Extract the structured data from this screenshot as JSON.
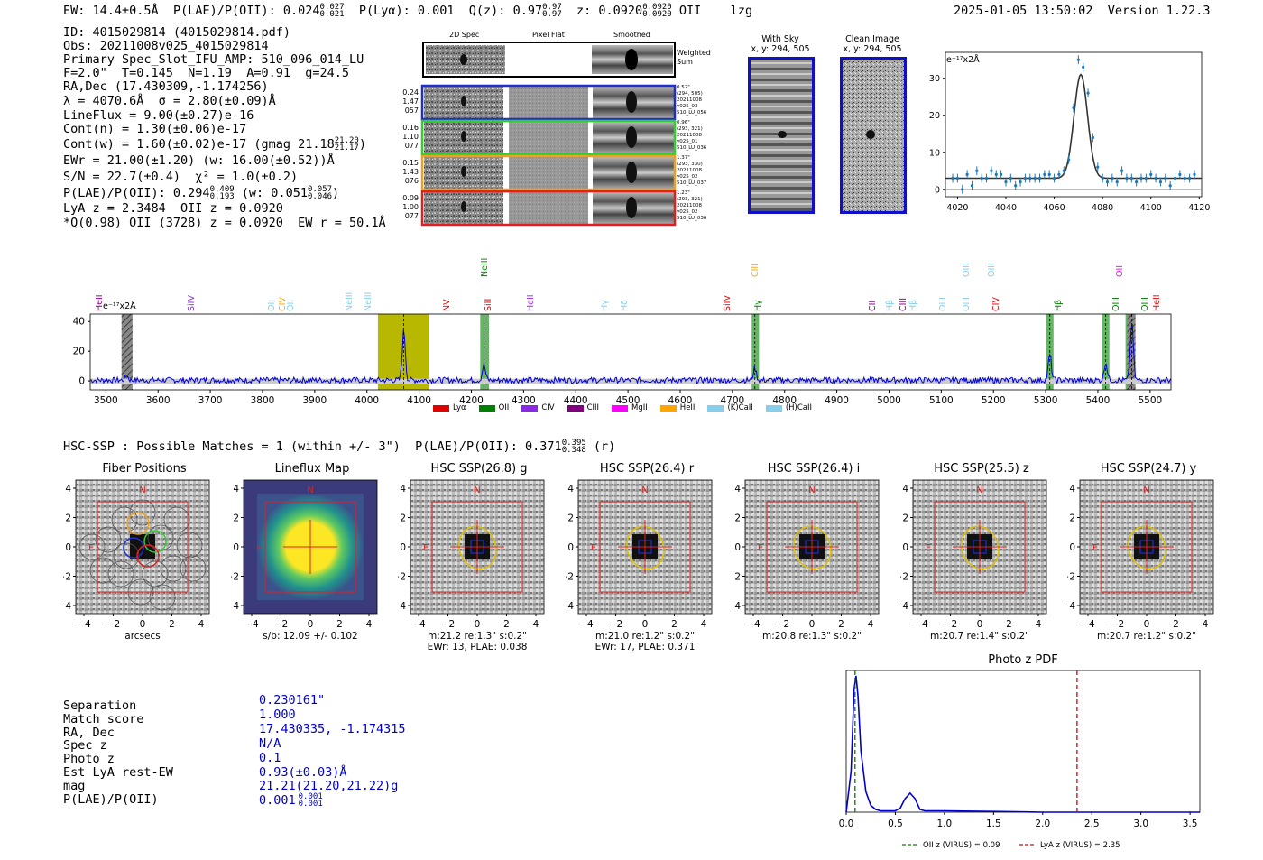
{
  "header": {
    "ew": "EW: 14.4±0.5Å",
    "plae": "P(LAE)/P(OII): 0.024",
    "plae_hi": "0.027",
    "plae_lo": "0.021",
    "plya": "P(Lyα): 0.001",
    "qz": "Q(z): 0.97",
    "qz_hi": "0.97",
    "qz_lo": "0.97",
    "z": "z: 0.0920",
    "z_hi": "0.0920",
    "z_lo": "0.0920",
    "z_line": "OII",
    "lzg": "lzg",
    "datetime": "2025-01-05 13:50:02",
    "version": "Version 1.22.3"
  },
  "info": {
    "l1": "ID: 4015029814 (4015029814.pdf)",
    "l2": "Obs: 20211008v025_4015029814",
    "l3": "Primary Spec_Slot_IFU_AMP: 510_096_014_LU",
    "l4": "F=2.0\"  T=0.145  N=1.19  A=0.91  g=24.5",
    "l5": "RA,Dec (17.430309,-1.174256)",
    "l6": "λ = 4070.6Å  σ = 2.80(±0.09)Å",
    "l7": "LineFlux = 9.00(±0.27)e-16",
    "l8": "Cont(n) = 1.30(±0.06)e-17",
    "l9": "Cont(w) = 1.60(±0.02)e-17 (gmag 21.18",
    "l9_hi": "21.20",
    "l9_lo": "21.17",
    "l9_end": ")",
    "l10": "EWr = 21.00(±1.20) (w: 16.00(±0.52))Å",
    "l11": "S/N = 22.7(±0.4)  χ² = 1.0(±0.2)",
    "l12a": "P(LAE)/P(OII): 0.294",
    "l12a_hi": "0.409",
    "l12a_lo": "0.193",
    "l12b": "(w: 0.051",
    "l12b_hi": "0.057",
    "l12b_lo": "0.046",
    "l12b_end": ")",
    "l13": "LyA z = 2.3484  OII z = 0.0920",
    "l14": "*Q(0.98) OII (3728) z = 0.0920  EW r = 50.1Å"
  },
  "cutouts": {
    "col1": "2D Spec",
    "col2": "Pixel Flat",
    "col3": "Smoothed",
    "weighted": "Weighted Sum",
    "fibers": [
      {
        "left": [
          "0.24",
          "1.47",
          "057"
        ],
        "right": [
          "0.52\"",
          "(294, 505)",
          "20211008",
          "v025_03",
          "510_LU_056"
        ],
        "color": "#1f2fcc"
      },
      {
        "left": [
          "0.16",
          "1.10",
          "077"
        ],
        "right": [
          "0.96\"",
          "(293, 321)",
          "20211008",
          "v025_01",
          "510_LU_036"
        ],
        "color": "#33cc33"
      },
      {
        "left": [
          "0.15",
          "1.43",
          "076"
        ],
        "right": [
          "1.37\"",
          "(293, 330)",
          "20211008",
          "v025_02",
          "510_LU_037"
        ],
        "color": "#f0a020"
      },
      {
        "left": [
          "0.09",
          "1.00",
          "077"
        ],
        "right": [
          "1.23\"",
          "(293, 321)",
          "20211008",
          "v025_02",
          "510_LU_036"
        ],
        "color": "#e02020"
      }
    ],
    "withsky": "With Sky",
    "withsky_xy": "x, y: 294, 505",
    "clean": "Clean Image",
    "clean_xy": "x, y: 294, 505"
  },
  "zoom_chart": {
    "label": "e⁻¹⁷x2Å",
    "yticks": [
      "0",
      "10",
      "20",
      "30"
    ],
    "xticks": [
      "4020",
      "4040",
      "4060",
      "4080",
      "4100",
      "4120"
    ]
  },
  "spectrum": {
    "ylabel": "e⁻¹⁷x2Å",
    "yticks": [
      "0",
      "20",
      "40"
    ],
    "xticks": [
      "3500",
      "3600",
      "3700",
      "3800",
      "3900",
      "4000",
      "4100",
      "4200",
      "4300",
      "4400",
      "4500",
      "4600",
      "4700",
      "4800",
      "4900",
      "5000",
      "5100",
      "5200",
      "5300",
      "5400",
      "5500"
    ],
    "legend": [
      {
        "label": "Lyα",
        "color": "#e00000"
      },
      {
        "label": "OII",
        "color": "#008000"
      },
      {
        "label": "CIV",
        "color": "#8a2be2"
      },
      {
        "label": "CIII",
        "color": "#800080"
      },
      {
        "label": "MgII",
        "color": "#ff00ff"
      },
      {
        "label": "HeII",
        "color": "#ffa500"
      },
      {
        "label": "(K)CaII",
        "color": "#87ceeb"
      },
      {
        "label": "(H)CaII",
        "color": "#87ceeb"
      }
    ],
    "lines": [
      {
        "t": "HeII",
        "x": 110,
        "c": "#800080",
        "r": 1
      },
      {
        "t": "SiIV",
        "x": 212,
        "c": "#8a2be2",
        "r": 1
      },
      {
        "t": "OII",
        "x": 301,
        "c": "#87ceeb",
        "r": 1
      },
      {
        "t": "CIV",
        "x": 313,
        "c": "#ffa500",
        "r": 1
      },
      {
        "t": "OII",
        "x": 322,
        "c": "#87ceeb",
        "r": 1
      },
      {
        "t": "NeIII",
        "x": 387,
        "c": "#87ceeb",
        "r": 1
      },
      {
        "t": "NeIII",
        "x": 408,
        "c": "#87ceeb",
        "r": 1
      },
      {
        "t": "NV",
        "x": 495,
        "c": "#e00000",
        "r": 1
      },
      {
        "t": "NeIII",
        "x": 537,
        "c": "#008000",
        "r": 0
      },
      {
        "t": "SiII",
        "x": 541,
        "c": "#e00000",
        "r": 1
      },
      {
        "t": "HeII",
        "x": 588,
        "c": "#8a2be2",
        "r": 1
      },
      {
        "t": "Hγ",
        "x": 670,
        "c": "#87ceeb",
        "r": 1
      },
      {
        "t": "Hδ",
        "x": 692,
        "c": "#87ceeb",
        "r": 1
      },
      {
        "t": "SiIV",
        "x": 806,
        "c": "#e00000",
        "r": 1
      },
      {
        "t": "CIII",
        "x": 837,
        "c": "#ffa500",
        "r": 0
      },
      {
        "t": "Hγ",
        "x": 840,
        "c": "#008000",
        "r": 1
      },
      {
        "t": "CII",
        "x": 967,
        "c": "#800080",
        "r": 1
      },
      {
        "t": "Hβ",
        "x": 986,
        "c": "#87ceeb",
        "r": 1
      },
      {
        "t": "CIII",
        "x": 1001,
        "c": "#800080",
        "r": 1
      },
      {
        "t": "Hβ",
        "x": 1012,
        "c": "#87ceeb",
        "r": 1
      },
      {
        "t": "OIII",
        "x": 1045,
        "c": "#87ceeb",
        "r": 1
      },
      {
        "t": "OIII",
        "x": 1071,
        "c": "#87ceeb",
        "r": 0
      },
      {
        "t": "OIII",
        "x": 1071,
        "c": "#87ceeb",
        "r": 1
      },
      {
        "t": "OIII",
        "x": 1099,
        "c": "#87ceeb",
        "r": 0
      },
      {
        "t": "CIV",
        "x": 1104,
        "c": "#e00000",
        "r": 1
      },
      {
        "t": "Hβ",
        "x": 1173,
        "c": "#008000",
        "r": 1
      },
      {
        "t": "OIII",
        "x": 1237,
        "c": "#008000",
        "r": 1
      },
      {
        "t": "OII",
        "x": 1241,
        "c": "#ff00ff",
        "r": 0
      },
      {
        "t": "OIII",
        "x": 1269,
        "c": "#008000",
        "r": 1
      },
      {
        "t": "HeII",
        "x": 1282,
        "c": "#e00000",
        "r": 1
      }
    ]
  },
  "hsc": {
    "title": "HSC-SSP : Possible Matches = 1 (within +/- 3\")  P(LAE)/P(OII): 0.371",
    "hi": "0.395",
    "lo": "0.348",
    "end": "(r)",
    "panels": [
      {
        "title": "Fiber Positions",
        "cap1": "arcsecs",
        "cap2": ""
      },
      {
        "title": "Lineflux Map",
        "cap1": "s/b: 12.09 +/- 0.102",
        "cap2": ""
      },
      {
        "title": "HSC SSP(26.8) g",
        "cap1": "m:21.2  re:1.3\"  s:0.2\"",
        "cap2": "EWr: 13, PLAE: 0.038"
      },
      {
        "title": "HSC SSP(26.4) r",
        "cap1": "m:21.0  re:1.2\"  s:0.2\"",
        "cap2": "EWr: 17, PLAE: 0.371"
      },
      {
        "title": "HSC SSP(26.4) i",
        "cap1": "m:20.8  re:1.3\"  s:0.2\"",
        "cap2": ""
      },
      {
        "title": "HSC SSP(25.5) z",
        "cap1": "m:20.7  re:1.4\"  s:0.2\"",
        "cap2": ""
      },
      {
        "title": "HSC SSP(24.7) y",
        "cap1": "m:20.7  re:1.2\"  s:0.2\"",
        "cap2": ""
      }
    ],
    "yticks": [
      "4",
      "2",
      "0",
      "−2",
      "−4"
    ],
    "xticks": [
      "−4",
      "−2",
      "0",
      "2",
      "4"
    ],
    "n": "N",
    "e": "E"
  },
  "match": {
    "labels": [
      "Separation",
      "Match score",
      "RA, Dec",
      "Spec z",
      "Photo z",
      "Est LyA rest-EW",
      "mag",
      "P(LAE)/P(OII)"
    ],
    "values": [
      "0.230161\"",
      "1.000",
      "17.430335, -1.174315",
      "N/A",
      "0.1",
      "0.93(±0.03)Å",
      "21.21(21.20,21.22)g",
      "0.001"
    ],
    "plae_hi": "0.001",
    "plae_lo": "0.001"
  },
  "chart_data": [
    {
      "type": "line",
      "title": "Photo z PDF",
      "xlabel": "",
      "ylabel": "",
      "xlim": [
        0,
        3.6
      ],
      "xticks": [
        "0.0",
        "0.5",
        "1.0",
        "1.5",
        "2.0",
        "2.5",
        "3.0",
        "3.5"
      ],
      "x": [
        0,
        0.05,
        0.08,
        0.1,
        0.12,
        0.15,
        0.2,
        0.25,
        0.3,
        0.35,
        0.4,
        0.5,
        0.55,
        0.6,
        0.65,
        0.7,
        0.75,
        0.8,
        1.0,
        1.5,
        2.0,
        2.5,
        3.0,
        3.6
      ],
      "values": [
        0,
        0.3,
        0.9,
        1.0,
        0.85,
        0.45,
        0.15,
        0.05,
        0.02,
        0.01,
        0.01,
        0.01,
        0.03,
        0.1,
        0.14,
        0.1,
        0.02,
        0.01,
        0.01,
        0.005,
        0.0,
        0.0,
        0.0,
        0.0
      ],
      "markers": [
        {
          "name": "OII z (VIRUS) = 0.09",
          "x": 0.09,
          "color": "#008000"
        },
        {
          "name": "LyA z (VIRUS) = 2.35",
          "x": 2.35,
          "color": "#e00000"
        }
      ]
    },
    {
      "type": "line",
      "title": "",
      "ylabel": "e⁻¹⁷x2Å",
      "xlim": [
        4015,
        4121
      ],
      "ylim": [
        -2,
        37
      ],
      "x": [
        4018,
        4020,
        4022,
        4024,
        4026,
        4028,
        4030,
        4032,
        4034,
        4036,
        4038,
        4040,
        4042,
        4044,
        4046,
        4048,
        4050,
        4052,
        4054,
        4056,
        4058,
        4060,
        4062,
        4064,
        4066,
        4068,
        4070,
        4072,
        4074,
        4076,
        4078,
        4080,
        4082,
        4084,
        4086,
        4088,
        4090,
        4092,
        4094,
        4096,
        4098,
        4100,
        4102,
        4104,
        4106,
        4108,
        4110,
        4112,
        4114,
        4116,
        4118
      ],
      "values": [
        3,
        3,
        0,
        4,
        1,
        5,
        3,
        3,
        5,
        4,
        4,
        2,
        3,
        1,
        2,
        3,
        3,
        3,
        3,
        4,
        4,
        3,
        4,
        5,
        8,
        22,
        35,
        33,
        26,
        14,
        6,
        3,
        2,
        3,
        2,
        5,
        3,
        3,
        2,
        3,
        3,
        4,
        3,
        2,
        3,
        1,
        3,
        4,
        3,
        3,
        4
      ],
      "fit_center": 4071,
      "fit_sigma": 2.8,
      "fit_amp": 28,
      "fit_base": 3
    },
    {
      "type": "line",
      "title": "",
      "ylabel": "e⁻¹⁷x2Å",
      "xlim": [
        3470,
        5540
      ],
      "ylim": [
        -6,
        45
      ],
      "peaks": [
        {
          "x": 4070.6,
          "y": 33
        },
        {
          "x": 4224,
          "y": 10
        },
        {
          "x": 4743,
          "y": 8
        },
        {
          "x": 5308,
          "y": 17
        },
        {
          "x": 5415,
          "y": 12
        },
        {
          "x": 5465,
          "y": 38
        },
        {
          "x": 3540,
          "y": 3
        }
      ],
      "highlights": [
        {
          "x0": 4021,
          "x1": 4118,
          "color": "#b8b800"
        },
        {
          "x0": 4217,
          "x1": 4234,
          "color": "#3fa33f"
        },
        {
          "x0": 4737,
          "x1": 4751,
          "color": "#3fa33f"
        },
        {
          "x0": 5301,
          "x1": 5315,
          "color": "#3fa33f"
        },
        {
          "x0": 5408,
          "x1": 5422,
          "color": "#3fa33f"
        },
        {
          "x0": 5453,
          "x1": 5470,
          "color": "#3fa33f"
        }
      ],
      "hatched": [
        {
          "x0": 3530,
          "x1": 3551
        },
        {
          "x0": 5456,
          "x1": 5472
        }
      ]
    }
  ]
}
